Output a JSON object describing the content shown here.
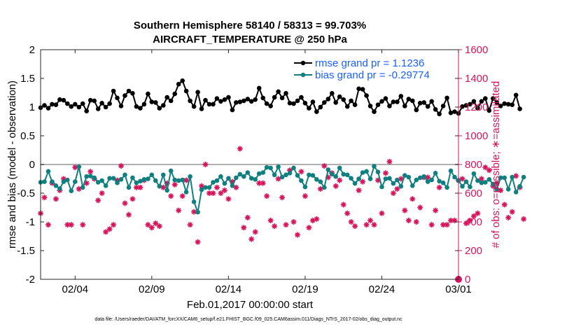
{
  "chart_data": {
    "type": "line",
    "title": "Southern Hemisphere 58140 / 58313 = 99.703%",
    "subtitle": "AIRCRAFT_TEMPERATURE @ 250 hPa",
    "xlabel": "Feb.01,2017 00:00:00 start",
    "ylabel": "rmse and bias (model - observation)",
    "ylabel_right": "# of obs: o=possible; ∗=assimilated",
    "footnote": "data file: /Users/raeder/DAI/ATM_forcXX/CAM6_setup/f.e21.FHIST_BGC.f09_025.CAM6assim.011/Diags_NTrS_2017-02/obs_diag_output.nc",
    "x_tick_labels": [
      "02/04",
      "02/09",
      "02/14",
      "02/19",
      "02/24",
      "03/01"
    ],
    "x_tick_days": [
      3,
      8,
      13,
      18,
      23,
      28
    ],
    "xlim": [
      0.75,
      28.0
    ],
    "ylim": [
      -2,
      2
    ],
    "y_ticks": [
      -2,
      -1.5,
      -1,
      -0.5,
      0,
      0.5,
      1,
      1.5,
      2
    ],
    "y_tick_labels": [
      "-2",
      "-1.5",
      "-1",
      "-0.5",
      "0",
      "0.5",
      "1",
      "1.5",
      "2"
    ],
    "ylim_right": [
      0,
      1600
    ],
    "y_ticks_right": [
      0,
      200,
      400,
      600,
      800,
      1000,
      1200,
      1400,
      1600
    ],
    "y_tick_labels_right": [
      "0",
      "200",
      "400",
      "600",
      "800",
      "1000",
      "1200",
      "1400",
      "1600"
    ],
    "legend_position": "top-right",
    "colors": {
      "rmse": "#000000",
      "bias": "#0f7f7f",
      "obs": "#d6135a",
      "zero_line": "#b0b0b0",
      "legend_text": "#1a5fff"
    },
    "series": [
      {
        "name": "rmse grand pr = 1.1236",
        "x_start_day": 0.75,
        "x_step_days": 0.25,
        "values": [
          0.99,
          1.03,
          0.98,
          1.05,
          1.04,
          1.13,
          1.12,
          1.06,
          1.01,
          1.05,
          1.0,
          1.06,
          0.93,
          1.12,
          1.11,
          0.97,
          1.07,
          1.0,
          1.06,
          1.28,
          1.16,
          1.02,
          1.2,
          1.28,
          1.24,
          1.01,
          0.98,
          1.05,
          1.23,
          1.09,
          1.08,
          0.98,
          1.03,
          1.17,
          1.11,
          1.23,
          1.4,
          1.46,
          1.28,
          1.11,
          1.01,
          1.26,
          0.97,
          1.12,
          1.05,
          1.05,
          1.15,
          1.1,
          1.13,
          1.17,
          0.95,
          1.08,
          1.09,
          1.11,
          1.14,
          1.1,
          1.13,
          1.33,
          1.16,
          1.06,
          1.02,
          1.17,
          1.27,
          1.16,
          1.24,
          1.07,
          1.06,
          1.11,
          1.17,
          1.07,
          0.98,
          1.09,
          0.92,
          1.0,
          1.08,
          1.14,
          1.24,
          1.08,
          1.18,
          1.13,
          1.01,
          1.11,
          1.04,
          1.32,
          1.31,
          1.2,
          1.02,
          0.92,
          1.04,
          1.1,
          1.15,
          1.02,
          1.09,
          1.09,
          1.19,
          1.02,
          1.14,
          1.11,
          0.95,
          1.07,
          1.08,
          1.01,
          1.1,
          0.96,
          0.88,
          1.02,
          1.16,
          0.9,
          0.92,
          0.89,
          1.01,
          1.03,
          1.05,
          1.1,
          0.98,
          1.1,
          1.15,
          0.94,
          1.15,
          1.08,
          1.02,
          1.06,
          1.05,
          1.04,
          1.21,
          0.97
        ]
      },
      {
        "name": "bias grand pr = -0.29774",
        "x_start_day": 0.75,
        "x_step_days": 0.25,
        "values": [
          -0.31,
          -0.3,
          -0.12,
          -0.3,
          -0.37,
          -0.42,
          -0.3,
          -0.27,
          -0.46,
          -0.3,
          -0.04,
          -0.4,
          -0.21,
          -0.2,
          -0.23,
          -0.31,
          -0.28,
          -0.37,
          -0.24,
          -0.24,
          -0.32,
          -0.26,
          -0.18,
          -0.4,
          -0.23,
          -0.32,
          -0.29,
          -0.26,
          -0.25,
          -0.18,
          -0.28,
          -0.38,
          -0.18,
          -0.45,
          -0.11,
          -0.27,
          -0.28,
          -0.27,
          -0.48,
          -0.21,
          -0.65,
          -0.83,
          -0.44,
          -0.4,
          -0.4,
          -0.31,
          -0.28,
          -0.21,
          -0.33,
          -0.24,
          -0.37,
          -0.23,
          -0.17,
          -0.21,
          -0.14,
          -0.24,
          -0.26,
          -0.16,
          -0.14,
          -0.05,
          -0.06,
          -0.18,
          -0.04,
          -0.22,
          -0.18,
          -0.15,
          -0.06,
          -0.19,
          -0.28,
          -0.39,
          -0.18,
          -0.19,
          -0.26,
          -0.3,
          -0.4,
          -0.09,
          -0.17,
          -0.21,
          -0.06,
          -0.17,
          -0.18,
          -0.24,
          -0.33,
          -0.25,
          -0.14,
          -0.12,
          -0.25,
          -0.03,
          -0.13,
          -0.39,
          -0.25,
          -0.24,
          -0.33,
          -0.27,
          -0.38,
          -0.19,
          -0.22,
          -0.37,
          -0.27,
          -0.23,
          -0.21,
          -0.3,
          -0.27,
          -0.15,
          -0.29,
          -0.32,
          -0.4,
          -0.11,
          -0.22,
          -0.28,
          -0.38,
          -0.3,
          -0.39,
          -0.16,
          -0.28,
          -0.32,
          -0.31,
          -0.26,
          -0.34,
          -0.43,
          -0.23,
          -0.23,
          -0.43,
          -0.22,
          -0.48,
          -0.38,
          -0.22
        ]
      },
      {
        "name": "# obs assimilated",
        "axis": "right",
        "marker": "asterisk",
        "x_start_day": 0.75,
        "x_step_days": 0.25,
        "values": [
          460,
          570,
          380,
          670,
          560,
          620,
          700,
          380,
          380,
          780,
          630,
          380,
          670,
          750,
          700,
          550,
          600,
          330,
          350,
          380,
          690,
          790,
          530,
          450,
          560,
          640,
          640,
          690,
          380,
          360,
          390,
          370,
          640,
          670,
          580,
          660,
          480,
          580,
          690,
          380,
          470,
          260,
          650,
          800,
          600,
          600,
          640,
          600,
          620,
          560,
          680,
          640,
          910,
          360,
          430,
          280,
          330,
          670,
          670,
          580,
          410,
          370,
          700,
          570,
          380,
          760,
          400,
          310,
          750,
          580,
          360,
          410,
          420,
          630,
          790,
          710,
          740,
          650,
          690,
          520,
          460,
          400,
          370,
          620,
          680,
          380,
          410,
          380,
          690,
          460,
          740,
          820,
          600,
          630,
          700,
          480,
          410,
          560,
          400,
          500,
          710,
          710,
          380,
          480,
          640,
          380,
          380,
          410,
          410,
          690,
          700,
          390,
          410,
          440,
          460,
          700,
          780,
          760,
          650,
          670,
          620,
          520,
          430,
          470,
          720,
          640,
          420
        ]
      }
    ]
  }
}
